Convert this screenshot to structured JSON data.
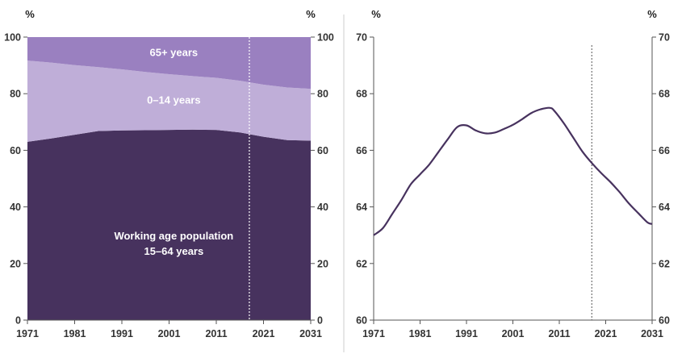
{
  "chart_data": [
    {
      "type": "area",
      "stacked": true,
      "unit_left": "%",
      "unit_right": "%",
      "ylim": [
        0,
        100
      ],
      "yticks": [
        0,
        20,
        40,
        60,
        80,
        100
      ],
      "xlim": [
        1971,
        2031
      ],
      "xticks": [
        "1971",
        "1981",
        "1991",
        "2001",
        "2011",
        "2021",
        "2031"
      ],
      "projection_start": 2018,
      "x": [
        1971,
        1976,
        1981,
        1986,
        1991,
        1996,
        2001,
        2006,
        2011,
        2016,
        2021,
        2026,
        2031
      ],
      "series": [
        {
          "name": "Working age population",
          "label_lines": [
            "Working age population",
            "15–64 years"
          ],
          "color": "#47325e",
          "values": [
            63.0,
            64.2,
            65.5,
            66.8,
            67.0,
            67.1,
            67.2,
            67.3,
            67.2,
            66.3,
            64.8,
            63.6,
            63.4
          ]
        },
        {
          "name": "0–14 years",
          "label_lines": [
            "0–14 years"
          ],
          "color": "#bfaed8",
          "values": [
            28.7,
            26.8,
            24.6,
            22.6,
            21.6,
            20.6,
            19.7,
            18.9,
            18.4,
            18.3,
            18.4,
            18.6,
            18.3
          ]
        },
        {
          "name": "65+ years",
          "label_lines": [
            "65+ years"
          ],
          "color": "#9a80c0",
          "values": [
            8.3,
            9.0,
            9.9,
            10.6,
            11.4,
            12.3,
            13.1,
            13.8,
            14.4,
            15.4,
            16.8,
            17.8,
            18.3
          ]
        }
      ]
    },
    {
      "type": "line",
      "unit_left": "%",
      "unit_right": "%",
      "ylim": [
        60,
        70
      ],
      "yticks": [
        60,
        62,
        64,
        66,
        68,
        70
      ],
      "xlim": [
        1971,
        2031
      ],
      "xticks": [
        "1971",
        "1981",
        "1991",
        "2001",
        "2011",
        "2021",
        "2031"
      ],
      "projection_start": 2018,
      "color": "#47325e",
      "x": [
        1971,
        1973,
        1975,
        1977,
        1979,
        1981,
        1983,
        1985,
        1987,
        1989,
        1991,
        1993,
        1995,
        1997,
        1999,
        2001,
        2003,
        2005,
        2007,
        2009,
        2010,
        2012,
        2014,
        2016,
        2018,
        2020,
        2022,
        2024,
        2026,
        2028,
        2030,
        2031
      ],
      "values": [
        63.0,
        63.25,
        63.75,
        64.25,
        64.8,
        65.15,
        65.5,
        65.95,
        66.4,
        66.82,
        66.88,
        66.7,
        66.6,
        66.62,
        66.75,
        66.9,
        67.1,
        67.32,
        67.45,
        67.5,
        67.38,
        66.95,
        66.45,
        65.95,
        65.55,
        65.2,
        64.88,
        64.52,
        64.12,
        63.78,
        63.45,
        63.4
      ]
    }
  ]
}
